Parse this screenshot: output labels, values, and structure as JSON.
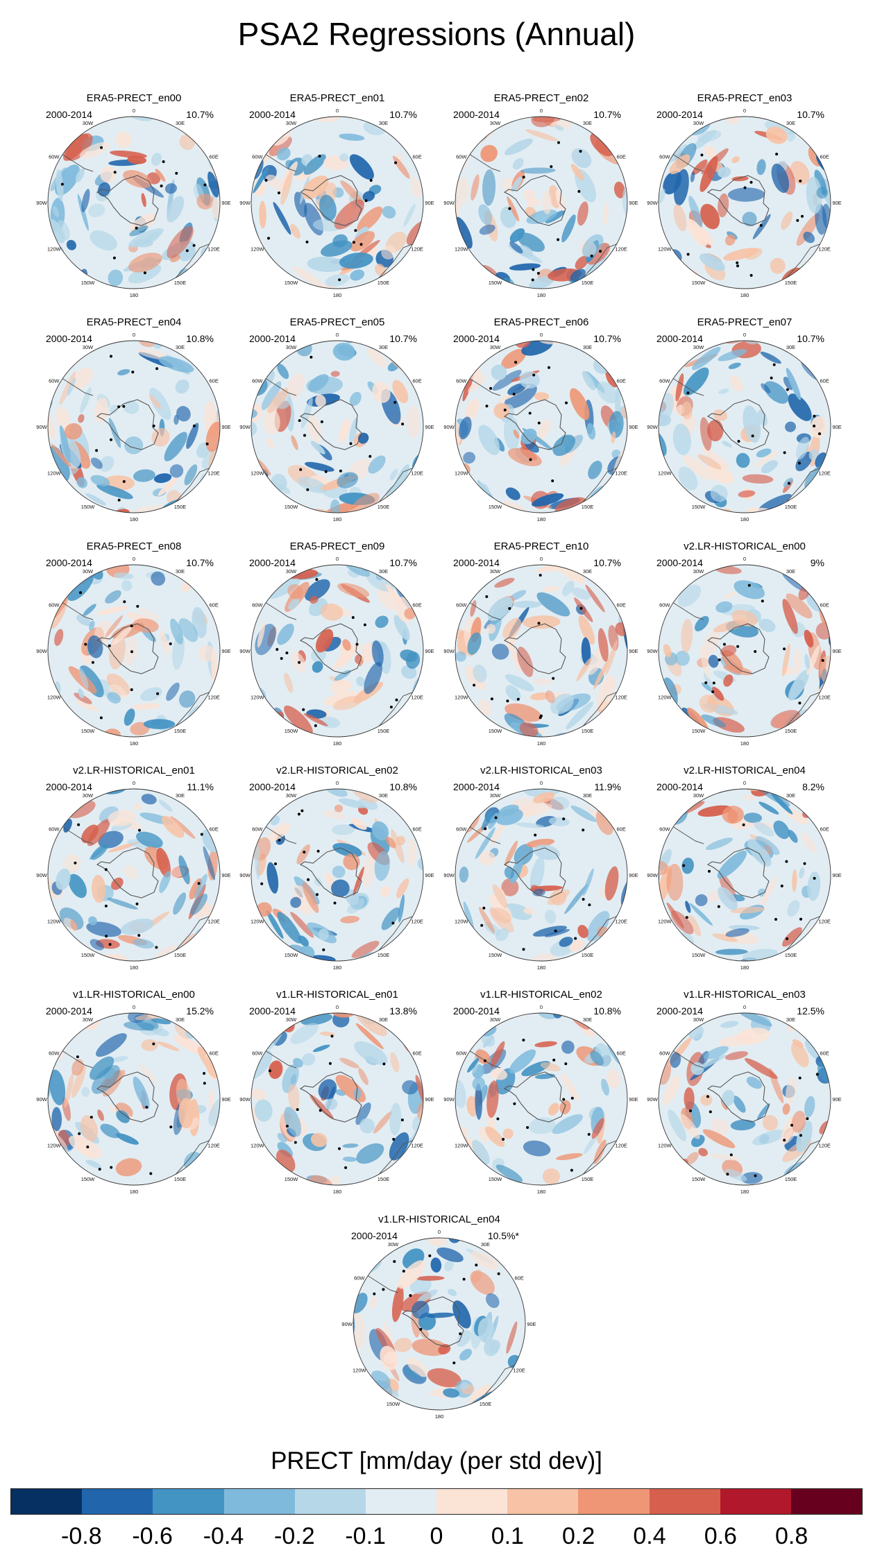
{
  "title": "PSA2 Regressions (Annual)",
  "colorbar": {
    "title": "PRECT [mm/day (per std dev)]",
    "colors": [
      "#053061",
      "#2166ac",
      "#4393c3",
      "#7fbadc",
      "#b6d7e8",
      "#e2edf3",
      "#fbe3d6",
      "#f7c2a5",
      "#ee9676",
      "#d6604d",
      "#b2182b",
      "#67001f"
    ],
    "tick_labels": [
      "-0.8",
      "-0.6",
      "-0.4",
      "-0.2",
      "-0.1",
      "0",
      "0.1",
      "0.2",
      "0.4",
      "0.6",
      "0.8"
    ]
  },
  "longitude_labels": [
    "0",
    "30E",
    "60E",
    "90E",
    "120E",
    "150E",
    "180",
    "150W",
    "120W",
    "90W",
    "60W",
    "30W"
  ],
  "panels": [
    {
      "title": "ERA5-PRECT_en00",
      "period": "2000-2014",
      "percent": "10.7%"
    },
    {
      "title": "ERA5-PRECT_en01",
      "period": "2000-2014",
      "percent": "10.7%"
    },
    {
      "title": "ERA5-PRECT_en02",
      "period": "2000-2014",
      "percent": "10.7%"
    },
    {
      "title": "ERA5-PRECT_en03",
      "period": "2000-2014",
      "percent": "10.7%"
    },
    {
      "title": "ERA5-PRECT_en04",
      "period": "2000-2014",
      "percent": "10.8%"
    },
    {
      "title": "ERA5-PRECT_en05",
      "period": "2000-2014",
      "percent": "10.7%"
    },
    {
      "title": "ERA5-PRECT_en06",
      "period": "2000-2014",
      "percent": "10.7%"
    },
    {
      "title": "ERA5-PRECT_en07",
      "period": "2000-2014",
      "percent": "10.7%"
    },
    {
      "title": "ERA5-PRECT_en08",
      "period": "2000-2014",
      "percent": "10.7%"
    },
    {
      "title": "ERA5-PRECT_en09",
      "period": "2000-2014",
      "percent": "10.7%"
    },
    {
      "title": "ERA5-PRECT_en10",
      "period": "2000-2014",
      "percent": "10.7%"
    },
    {
      "title": "v2.LR-HISTORICAL_en00",
      "period": "2000-2014",
      "percent": "9%"
    },
    {
      "title": "v2.LR-HISTORICAL_en01",
      "period": "2000-2014",
      "percent": "11.1%"
    },
    {
      "title": "v2.LR-HISTORICAL_en02",
      "period": "2000-2014",
      "percent": "10.8%"
    },
    {
      "title": "v2.LR-HISTORICAL_en03",
      "period": "2000-2014",
      "percent": "11.9%"
    },
    {
      "title": "v2.LR-HISTORICAL_en04",
      "period": "2000-2014",
      "percent": "8.2%"
    },
    {
      "title": "v1.LR-HISTORICAL_en00",
      "period": "2000-2014",
      "percent": "15.2%"
    },
    {
      "title": "v1.LR-HISTORICAL_en01",
      "period": "2000-2014",
      "percent": "13.8%"
    },
    {
      "title": "v1.LR-HISTORICAL_en02",
      "period": "2000-2014",
      "percent": "10.8%"
    },
    {
      "title": "v1.LR-HISTORICAL_en03",
      "period": "2000-2014",
      "percent": "12.5%"
    },
    {
      "title": "v1.LR-HISTORICAL_en04",
      "period": "2000-2014",
      "percent": "10.5%*"
    }
  ]
}
